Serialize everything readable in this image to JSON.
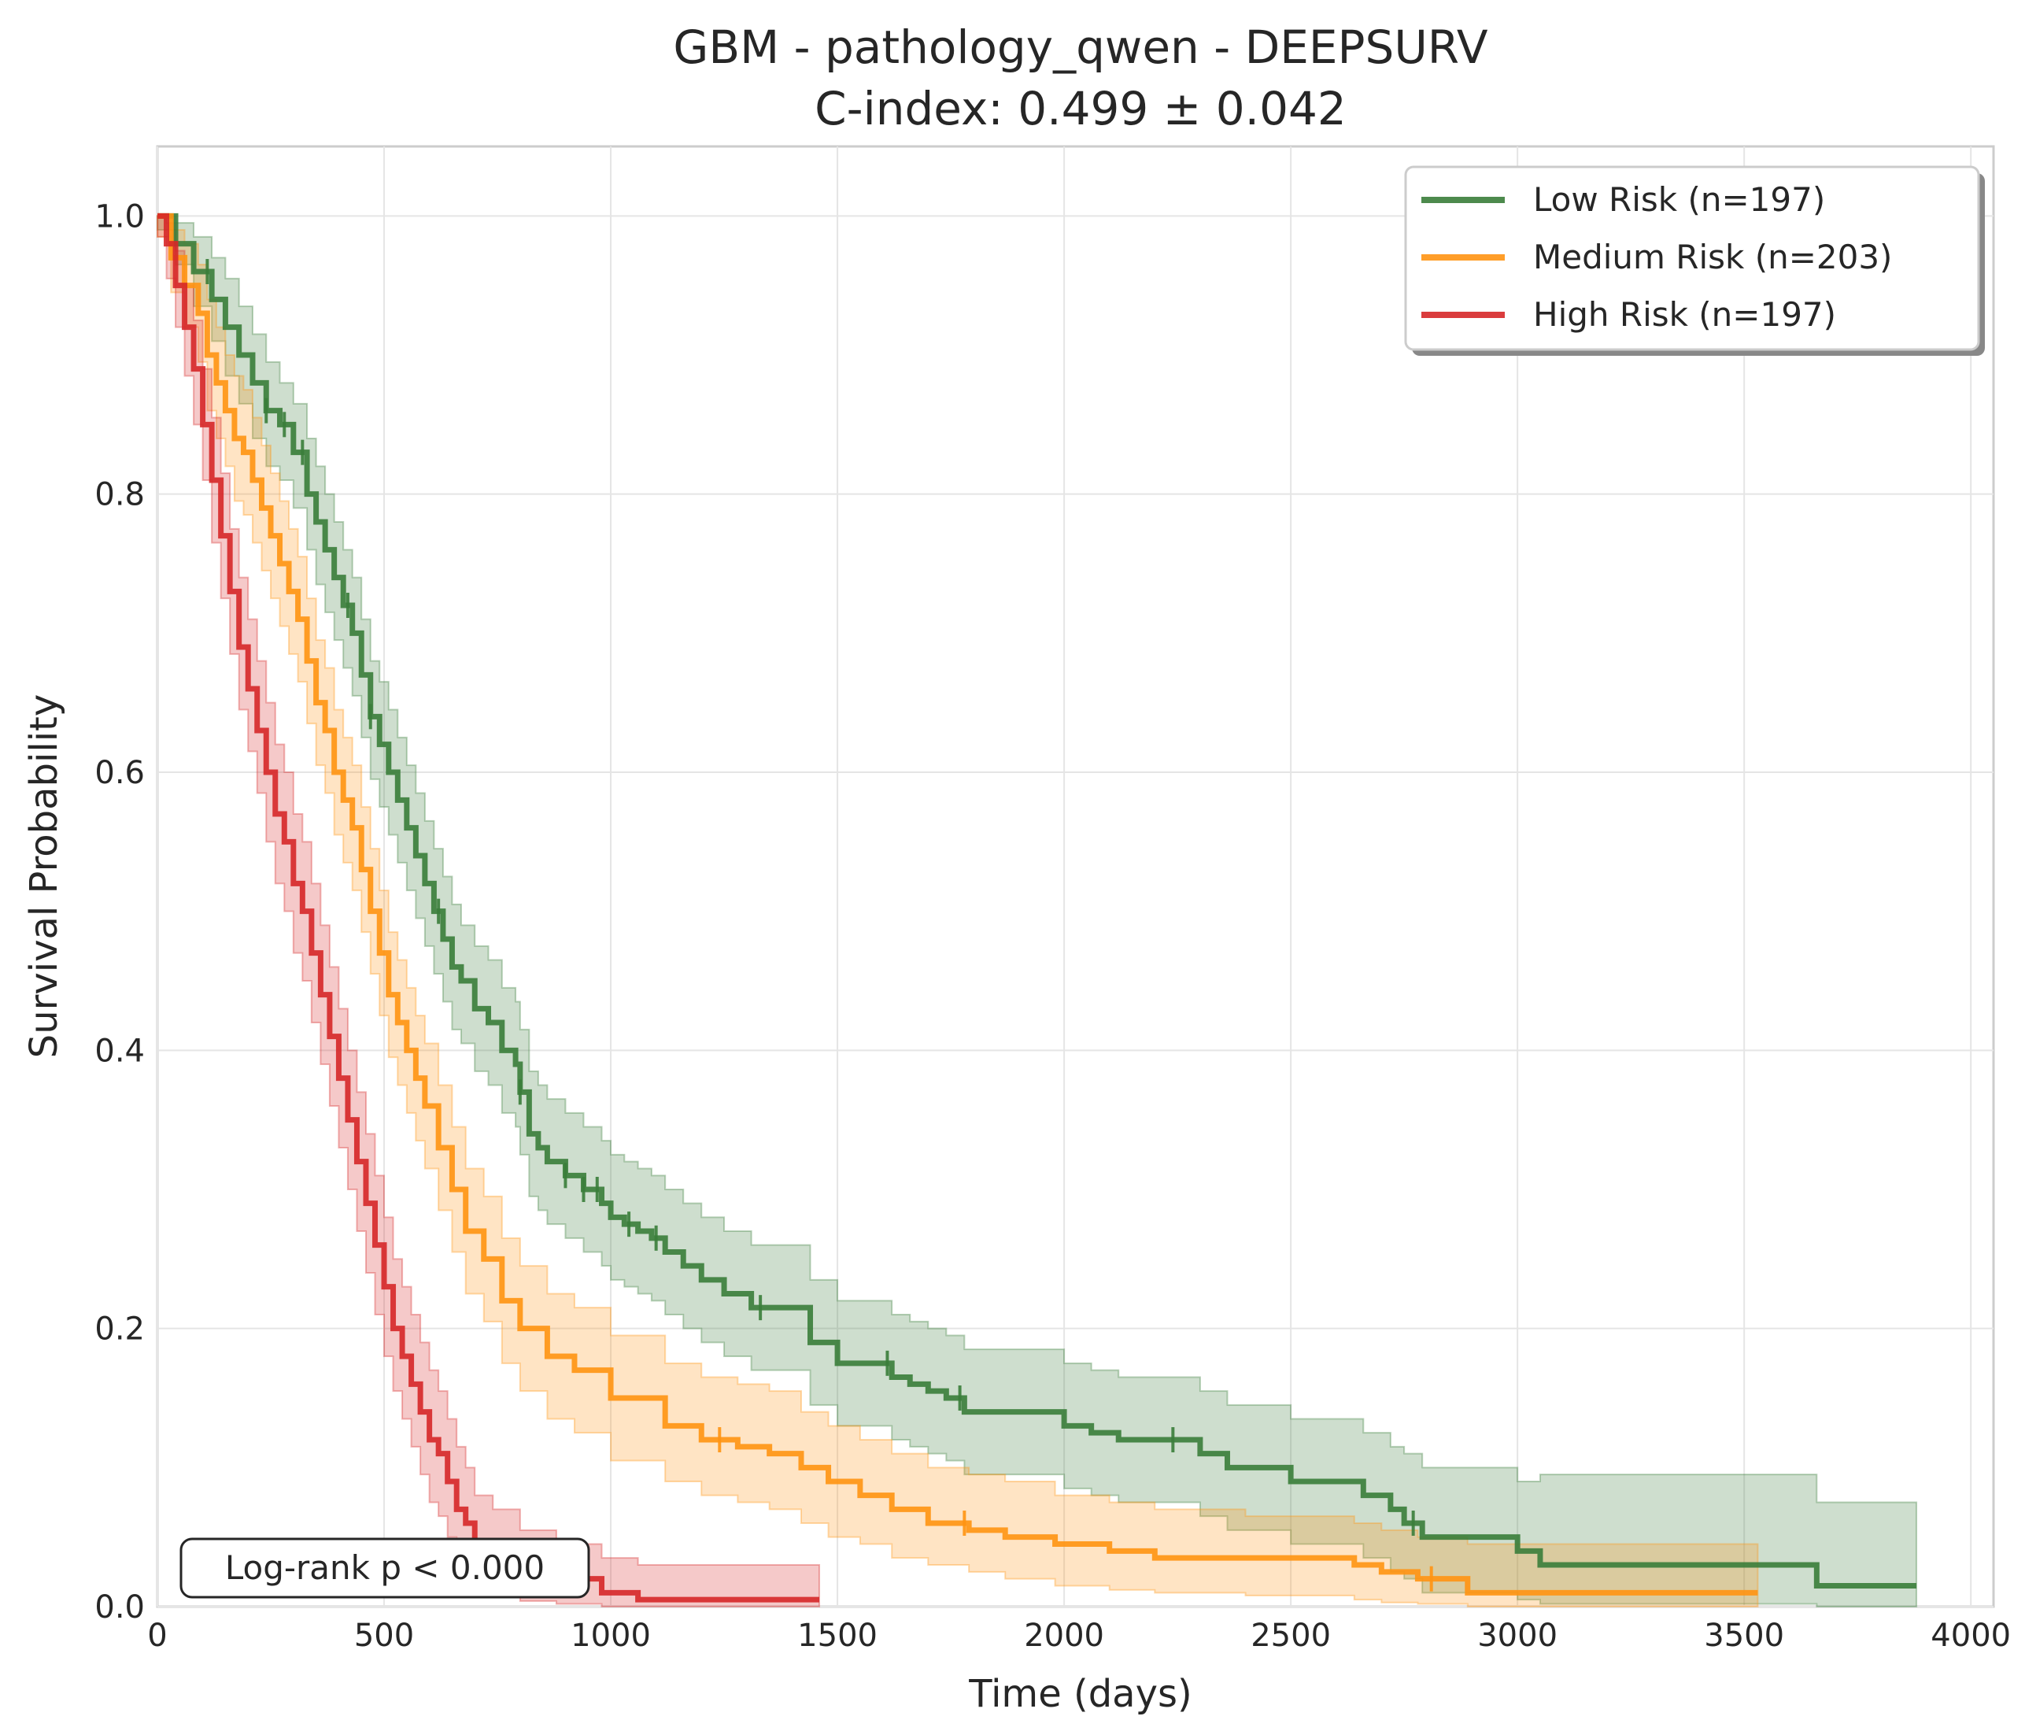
{
  "chart_data": {
    "type": "line",
    "title": "GBM - pathology_qwen - DEEPSURV",
    "subtitle": "C-index: 0.499 ± 0.042",
    "xlabel": "Time (days)",
    "ylabel": "Survival Probability",
    "xlim": [
      0,
      4050
    ],
    "ylim": [
      0,
      1.05
    ],
    "xticks": [
      0,
      500,
      1000,
      1500,
      2000,
      2500,
      3000,
      3500,
      4000
    ],
    "yticks": [
      0.0,
      0.2,
      0.4,
      0.6,
      0.8,
      1.0
    ],
    "grid": true,
    "legend_position": "top-right",
    "annotation": "Log-rank p < 0.000",
    "series": [
      {
        "name": "Low Risk (n=197)",
        "color": "#3a7d3a",
        "x": [
          0,
          40,
          80,
          120,
          150,
          180,
          210,
          240,
          270,
          300,
          330,
          350,
          370,
          390,
          410,
          430,
          450,
          470,
          490,
          510,
          530,
          550,
          570,
          590,
          610,
          630,
          650,
          670,
          700,
          730,
          760,
          790,
          800,
          820,
          840,
          860,
          900,
          940,
          980,
          1000,
          1030,
          1060,
          1090,
          1120,
          1160,
          1200,
          1250,
          1310,
          1370,
          1440,
          1500,
          1550,
          1620,
          1660,
          1700,
          1740,
          1780,
          1840,
          1900,
          2000,
          2060,
          2120,
          2200,
          2300,
          2360,
          2440,
          2500,
          2560,
          2660,
          2720,
          2750,
          2790,
          2880,
          3000,
          3050,
          3250,
          3500,
          3660,
          3880
        ],
        "y": [
          1.0,
          0.98,
          0.96,
          0.94,
          0.92,
          0.9,
          0.88,
          0.86,
          0.85,
          0.83,
          0.8,
          0.78,
          0.76,
          0.74,
          0.72,
          0.7,
          0.67,
          0.64,
          0.62,
          0.6,
          0.58,
          0.56,
          0.54,
          0.52,
          0.5,
          0.48,
          0.46,
          0.45,
          0.43,
          0.42,
          0.4,
          0.39,
          0.37,
          0.34,
          0.33,
          0.32,
          0.31,
          0.3,
          0.29,
          0.28,
          0.275,
          0.27,
          0.265,
          0.255,
          0.245,
          0.235,
          0.225,
          0.215,
          0.215,
          0.19,
          0.175,
          0.175,
          0.165,
          0.16,
          0.155,
          0.15,
          0.14,
          0.14,
          0.14,
          0.13,
          0.125,
          0.12,
          0.12,
          0.11,
          0.1,
          0.1,
          0.09,
          0.09,
          0.08,
          0.07,
          0.06,
          0.05,
          0.05,
          0.04,
          0.03,
          0.03,
          0.03,
          0.015,
          0.015
        ],
        "ci_upper": [
          1.0,
          0.995,
          0.985,
          0.97,
          0.955,
          0.935,
          0.915,
          0.895,
          0.88,
          0.865,
          0.84,
          0.82,
          0.8,
          0.78,
          0.76,
          0.74,
          0.71,
          0.68,
          0.665,
          0.645,
          0.625,
          0.605,
          0.585,
          0.565,
          0.545,
          0.525,
          0.505,
          0.49,
          0.475,
          0.465,
          0.445,
          0.435,
          0.415,
          0.385,
          0.375,
          0.365,
          0.355,
          0.345,
          0.335,
          0.325,
          0.32,
          0.315,
          0.31,
          0.3,
          0.29,
          0.28,
          0.27,
          0.26,
          0.26,
          0.235,
          0.22,
          0.22,
          0.21,
          0.205,
          0.2,
          0.195,
          0.185,
          0.185,
          0.185,
          0.175,
          0.17,
          0.165,
          0.165,
          0.155,
          0.145,
          0.145,
          0.135,
          0.135,
          0.125,
          0.115,
          0.11,
          0.1,
          0.1,
          0.09,
          0.095,
          0.095,
          0.095,
          0.075,
          0.075
        ],
        "ci_lower": [
          0.99,
          0.965,
          0.935,
          0.91,
          0.885,
          0.865,
          0.84,
          0.82,
          0.81,
          0.79,
          0.76,
          0.735,
          0.715,
          0.695,
          0.675,
          0.655,
          0.625,
          0.595,
          0.575,
          0.555,
          0.535,
          0.515,
          0.495,
          0.475,
          0.455,
          0.435,
          0.415,
          0.405,
          0.385,
          0.375,
          0.355,
          0.345,
          0.325,
          0.295,
          0.285,
          0.275,
          0.265,
          0.255,
          0.245,
          0.235,
          0.23,
          0.225,
          0.22,
          0.21,
          0.2,
          0.19,
          0.18,
          0.17,
          0.17,
          0.145,
          0.13,
          0.13,
          0.12,
          0.115,
          0.11,
          0.105,
          0.095,
          0.095,
          0.095,
          0.085,
          0.08,
          0.075,
          0.075,
          0.065,
          0.055,
          0.055,
          0.045,
          0.045,
          0.035,
          0.025,
          0.02,
          0.01,
          0.01,
          0.005,
          0.002,
          0.002,
          0.002,
          0.0,
          0.0
        ]
      },
      {
        "name": "Medium Risk (n=203)",
        "color": "#ff9412",
        "x": [
          0,
          30,
          60,
          90,
          110,
          130,
          150,
          170,
          190,
          210,
          230,
          250,
          270,
          290,
          310,
          330,
          350,
          370,
          390,
          410,
          430,
          450,
          470,
          490,
          510,
          530,
          550,
          570,
          590,
          620,
          650,
          680,
          720,
          760,
          800,
          860,
          920,
          1000,
          1060,
          1120,
          1200,
          1280,
          1350,
          1420,
          1480,
          1550,
          1620,
          1700,
          1790,
          1870,
          1980,
          2100,
          2200,
          2400,
          2520,
          2640,
          2700,
          2780,
          2890,
          3000,
          3530
        ],
        "y": [
          1.0,
          0.97,
          0.95,
          0.93,
          0.9,
          0.88,
          0.86,
          0.84,
          0.83,
          0.81,
          0.79,
          0.77,
          0.75,
          0.73,
          0.71,
          0.68,
          0.65,
          0.63,
          0.6,
          0.58,
          0.56,
          0.53,
          0.5,
          0.47,
          0.44,
          0.42,
          0.4,
          0.38,
          0.36,
          0.33,
          0.3,
          0.27,
          0.25,
          0.22,
          0.2,
          0.18,
          0.17,
          0.15,
          0.15,
          0.13,
          0.12,
          0.115,
          0.11,
          0.1,
          0.09,
          0.08,
          0.07,
          0.06,
          0.055,
          0.05,
          0.045,
          0.04,
          0.035,
          0.035,
          0.035,
          0.03,
          0.025,
          0.02,
          0.01,
          0.01,
          0.01
        ],
        "ci_upper": [
          1.0,
          0.99,
          0.98,
          0.965,
          0.94,
          0.92,
          0.9,
          0.885,
          0.875,
          0.855,
          0.835,
          0.815,
          0.795,
          0.775,
          0.755,
          0.725,
          0.695,
          0.675,
          0.645,
          0.625,
          0.605,
          0.575,
          0.545,
          0.515,
          0.485,
          0.465,
          0.445,
          0.425,
          0.405,
          0.375,
          0.345,
          0.315,
          0.295,
          0.265,
          0.245,
          0.225,
          0.215,
          0.195,
          0.195,
          0.175,
          0.165,
          0.16,
          0.155,
          0.14,
          0.13,
          0.12,
          0.11,
          0.1,
          0.095,
          0.09,
          0.08,
          0.075,
          0.07,
          0.065,
          0.065,
          0.06,
          0.055,
          0.05,
          0.045,
          0.045,
          0.045
        ],
        "ci_lower": [
          0.985,
          0.945,
          0.92,
          0.895,
          0.86,
          0.84,
          0.82,
          0.795,
          0.785,
          0.765,
          0.745,
          0.725,
          0.705,
          0.685,
          0.665,
          0.635,
          0.605,
          0.585,
          0.555,
          0.535,
          0.515,
          0.485,
          0.455,
          0.425,
          0.395,
          0.375,
          0.355,
          0.335,
          0.315,
          0.285,
          0.255,
          0.225,
          0.205,
          0.175,
          0.155,
          0.135,
          0.125,
          0.105,
          0.105,
          0.09,
          0.08,
          0.075,
          0.07,
          0.06,
          0.05,
          0.045,
          0.035,
          0.03,
          0.025,
          0.02,
          0.015,
          0.012,
          0.01,
          0.008,
          0.008,
          0.005,
          0.003,
          0.002,
          0.0,
          0.0,
          0.0
        ]
      },
      {
        "name": "High Risk (n=197)",
        "color": "#d62728",
        "x": [
          0,
          20,
          40,
          60,
          80,
          100,
          120,
          140,
          160,
          180,
          200,
          220,
          240,
          260,
          280,
          300,
          320,
          340,
          360,
          380,
          400,
          420,
          440,
          460,
          480,
          500,
          520,
          540,
          560,
          580,
          600,
          620,
          640,
          660,
          680,
          700,
          740,
          800,
          880,
          980,
          1060,
          1460
        ],
        "y": [
          1.0,
          0.98,
          0.95,
          0.92,
          0.89,
          0.85,
          0.81,
          0.77,
          0.73,
          0.69,
          0.66,
          0.63,
          0.6,
          0.57,
          0.55,
          0.52,
          0.5,
          0.47,
          0.44,
          0.41,
          0.38,
          0.35,
          0.32,
          0.29,
          0.26,
          0.23,
          0.2,
          0.18,
          0.16,
          0.14,
          0.12,
          0.11,
          0.09,
          0.07,
          0.06,
          0.04,
          0.03,
          0.02,
          0.02,
          0.01,
          0.005,
          0.005
        ],
        "ci_upper": [
          1.0,
          0.995,
          0.975,
          0.95,
          0.925,
          0.89,
          0.855,
          0.815,
          0.775,
          0.74,
          0.71,
          0.68,
          0.65,
          0.62,
          0.6,
          0.57,
          0.55,
          0.52,
          0.49,
          0.46,
          0.43,
          0.4,
          0.37,
          0.34,
          0.31,
          0.28,
          0.25,
          0.23,
          0.21,
          0.19,
          0.17,
          0.155,
          0.135,
          0.115,
          0.1,
          0.08,
          0.07,
          0.055,
          0.045,
          0.035,
          0.03,
          0.03
        ],
        "ci_lower": [
          0.985,
          0.955,
          0.92,
          0.885,
          0.85,
          0.81,
          0.765,
          0.725,
          0.685,
          0.645,
          0.615,
          0.585,
          0.55,
          0.52,
          0.5,
          0.47,
          0.45,
          0.42,
          0.39,
          0.36,
          0.33,
          0.3,
          0.27,
          0.24,
          0.21,
          0.18,
          0.155,
          0.135,
          0.115,
          0.095,
          0.075,
          0.065,
          0.05,
          0.035,
          0.025,
          0.015,
          0.008,
          0.004,
          0.002,
          0.0,
          0.0,
          0.0
        ]
      }
    ],
    "censor_marks": [
      {
        "series": 0,
        "x": [
          110,
          240,
          280,
          320,
          420,
          470,
          620,
          800,
          900,
          940,
          970,
          1040,
          1100,
          1330,
          1610,
          1770,
          2240,
          2770
        ]
      },
      {
        "series": 1,
        "x": [
          1240,
          1780,
          2810
        ]
      },
      {
        "series": 2,
        "x": [
          710
        ]
      }
    ]
  }
}
